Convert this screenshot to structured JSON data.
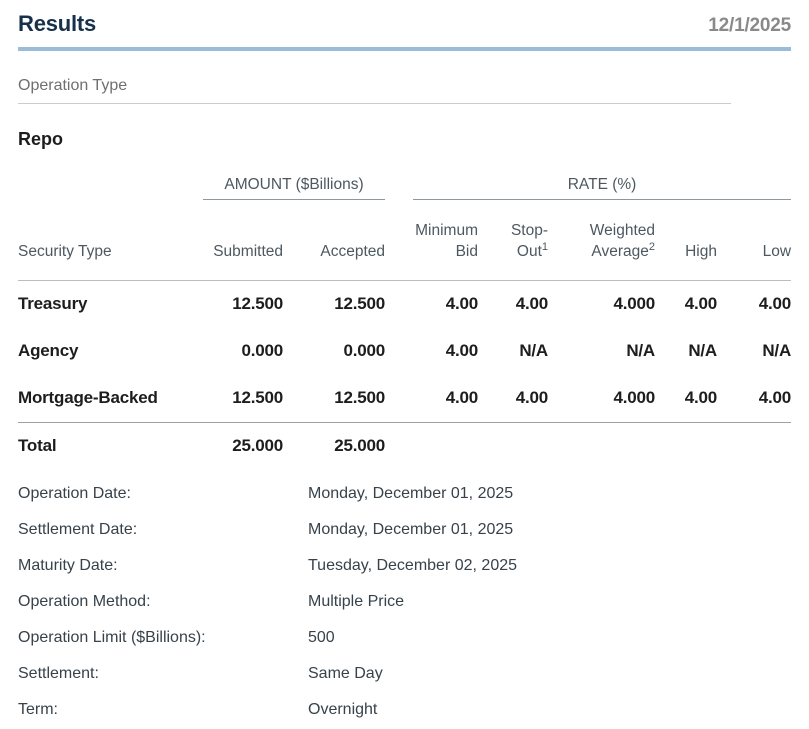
{
  "header": {
    "title": "Results",
    "date": "12/1/2025"
  },
  "operation_type": {
    "label": "Operation Type",
    "value": "Repo"
  },
  "table": {
    "group_headers": {
      "amount": "AMOUNT ($Billions)",
      "rate": "RATE (%)"
    },
    "columns": {
      "security_type": "Security Type",
      "submitted": "Submitted",
      "accepted": "Accepted",
      "minimum_bid_line1": "Minimum",
      "minimum_bid_line2": "Bid",
      "stop_out_line1": "Stop-",
      "stop_out_line2": "Out",
      "stop_out_sup": "1",
      "weighted_avg_line1": "Weighted",
      "weighted_avg_line2": "Average",
      "weighted_avg_sup": "2",
      "high": "High",
      "low": "Low"
    },
    "rows": [
      {
        "name": "Treasury",
        "submitted": "12.500",
        "accepted": "12.500",
        "minimum_bid": "4.00",
        "stop_out": "4.00",
        "weighted_average": "4.000",
        "high": "4.00",
        "low": "4.00"
      },
      {
        "name": "Agency",
        "submitted": "0.000",
        "accepted": "0.000",
        "minimum_bid": "4.00",
        "stop_out": "N/A",
        "weighted_average": "N/A",
        "high": "N/A",
        "low": "N/A"
      },
      {
        "name": "Mortgage-Backed",
        "submitted": "12.500",
        "accepted": "12.500",
        "minimum_bid": "4.00",
        "stop_out": "4.00",
        "weighted_average": "4.000",
        "high": "4.00",
        "low": "4.00"
      }
    ],
    "total": {
      "name": "Total",
      "submitted": "25.000",
      "accepted": "25.000"
    }
  },
  "details": [
    {
      "label": "Operation Date:",
      "value": "Monday, December 01, 2025"
    },
    {
      "label": "Settlement Date:",
      "value": "Monday, December 01, 2025"
    },
    {
      "label": "Maturity Date:",
      "value": "Tuesday, December 02, 2025"
    },
    {
      "label": "Operation Method:",
      "value": "Multiple Price"
    },
    {
      "label": "Operation Limit ($Billions):",
      "value": "500"
    },
    {
      "label": "Settlement:",
      "value": "Same Day"
    },
    {
      "label": "Term:",
      "value": "Overnight"
    }
  ],
  "colors": {
    "title_navy": "#17304b",
    "divider_blue": "#9bbcd7",
    "label_gray": "#6f6f6f",
    "date_gray": "#898989",
    "table_header_slate": "#4d5860",
    "data_black": "#1d1d1d",
    "detail_slate": "#37424a"
  }
}
